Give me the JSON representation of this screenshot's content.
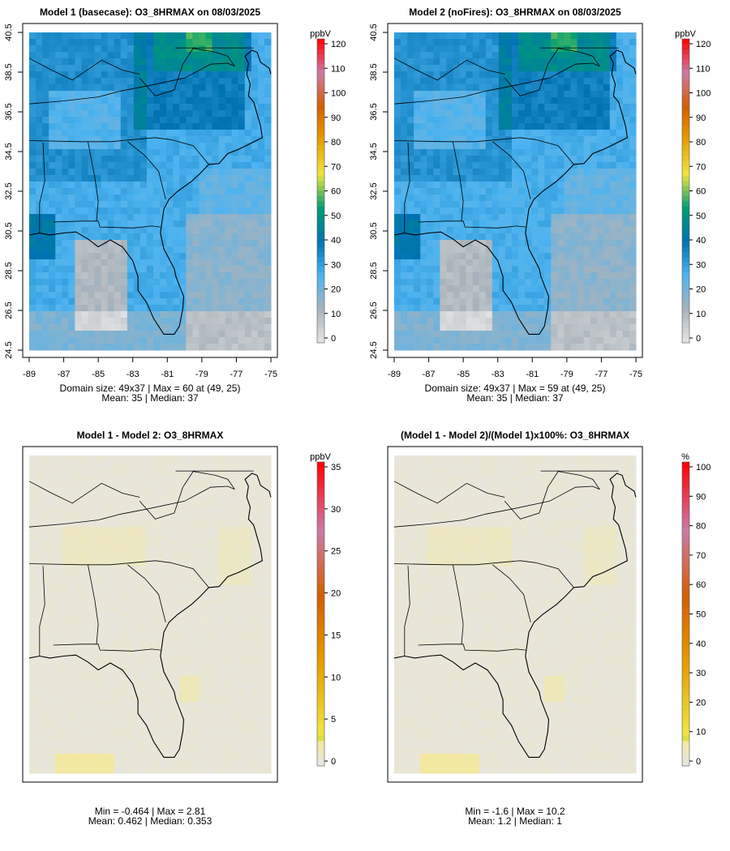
{
  "panels": [
    {
      "id": "p1",
      "title": "Model 1 (basecase): O3_8HRMAX on 08/03/2025",
      "unit": "ppbV",
      "field": "o3a",
      "colorbar_max": 120,
      "colorbar_ticks": [
        "0",
        "10",
        "20",
        "30",
        "40",
        "50",
        "60",
        "70",
        "80",
        "90",
        "100",
        "110",
        "120"
      ],
      "show_axes": true,
      "stats": [
        "Domain size: 49x37 | Max = 60 at (49, 25)",
        "Mean: 35 |  Median: 37"
      ]
    },
    {
      "id": "p2",
      "title": "Model 2 (noFires): O3_8HRMAX on 08/03/2025",
      "unit": "ppbV",
      "field": "o3b",
      "colorbar_max": 120,
      "colorbar_ticks": [
        "0",
        "10",
        "20",
        "30",
        "40",
        "50",
        "60",
        "70",
        "80",
        "90",
        "100",
        "110",
        "120"
      ],
      "show_axes": true,
      "stats": [
        "Domain size: 49x37 | Max = 59 at (49, 25)",
        "Mean: 35 |  Median: 37"
      ]
    },
    {
      "id": "p3",
      "title": "Model 1 - Model 2: O3_8HRMAX",
      "unit": "ppbV",
      "field": "diff",
      "colorbar_max": 35,
      "colorbar_ticks": [
        "0",
        "5",
        "10",
        "15",
        "20",
        "25",
        "30",
        "35"
      ],
      "show_axes": false,
      "stats": [
        "Min = -0.464 | Max = 2.81",
        "Mean: 0.462 |  Median: 0.353"
      ]
    },
    {
      "id": "p4",
      "title": "(Model 1 - Model 2)/(Model 1)x100%: O3_8HRMAX",
      "unit": "%",
      "field": "pct",
      "colorbar_max": 100,
      "colorbar_ticks": [
        "0",
        "10",
        "20",
        "30",
        "40",
        "50",
        "60",
        "70",
        "80",
        "90",
        "100"
      ],
      "show_axes": false,
      "stats": [
        "Min = -1.6 | Max = 10.2",
        "Mean: 1.2 |  Median: 1"
      ]
    }
  ],
  "axes": {
    "x_ticks": [
      "-89",
      "-87",
      "-85",
      "-83",
      "-81",
      "-79",
      "-77",
      "-75"
    ],
    "y_ticks": [
      "24.5",
      "26.5",
      "28.5",
      "30.5",
      "32.5",
      "34.5",
      "36.5",
      "38.5",
      "40.5"
    ]
  },
  "colors": {
    "scale": [
      "#e6e6e6",
      "#a9b3bb",
      "#4db3f0",
      "#0072b2",
      "#009e73",
      "#f0e442",
      "#e69f00",
      "#d55e00",
      "#cc79a7",
      "#ff0000"
    ],
    "land_gray": "#e6e6e6",
    "boundary": "#000000"
  },
  "chart_data": [
    {
      "type": "heatmap",
      "title": "Model 1 (basecase): O3_8HRMAX on 08/03/2025",
      "grid": {
        "ncols": 37,
        "nrows": 49
      },
      "xlim": [
        -89,
        -75
      ],
      "ylim": [
        24.5,
        40.5
      ],
      "colorbar": {
        "label": "ppbV",
        "range": [
          0,
          120
        ]
      },
      "summary": {
        "max": 60,
        "max_at": [
          49,
          25
        ],
        "mean": 35,
        "median": 37
      }
    },
    {
      "type": "heatmap",
      "title": "Model 2 (noFires): O3_8HRMAX on 08/03/2025",
      "grid": {
        "ncols": 37,
        "nrows": 49
      },
      "xlim": [
        -89,
        -75
      ],
      "ylim": [
        24.5,
        40.5
      ],
      "colorbar": {
        "label": "ppbV",
        "range": [
          0,
          120
        ]
      },
      "summary": {
        "max": 59,
        "max_at": [
          49,
          25
        ],
        "mean": 35,
        "median": 37
      }
    },
    {
      "type": "heatmap",
      "title": "Model 1 - Model 2: O3_8HRMAX",
      "colorbar": {
        "label": "ppbV",
        "range": [
          0,
          35
        ]
      },
      "summary": {
        "min": -0.464,
        "max": 2.81,
        "mean": 0.462,
        "median": 0.353
      }
    },
    {
      "type": "heatmap",
      "title": "(Model 1 - Model 2)/(Model 1)x100%: O3_8HRMAX",
      "colorbar": {
        "label": "%",
        "range": [
          0,
          100
        ]
      },
      "summary": {
        "min": -1.6,
        "max": 10.2,
        "mean": 1.2,
        "median": 1
      }
    }
  ]
}
